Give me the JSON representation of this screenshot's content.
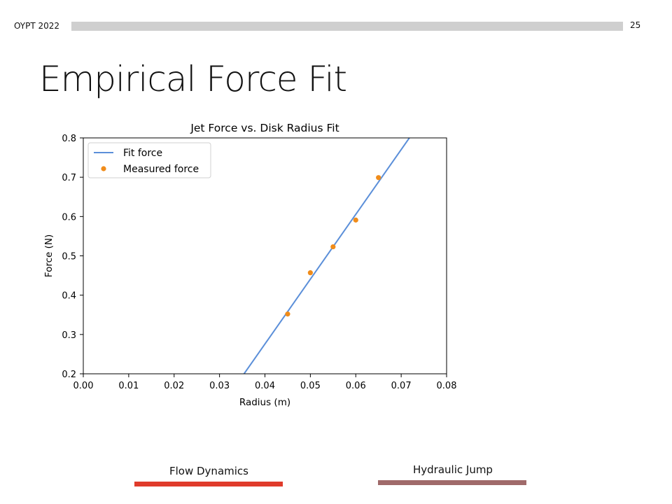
{
  "header": {
    "left_text": "OYPT 2022",
    "page_number": "25"
  },
  "slide": {
    "title": "Empirical Force Fit"
  },
  "chart_data": {
    "type": "line",
    "title": "Jet Force vs. Disk Radius Fit",
    "xlabel": "Radius (m)",
    "ylabel": "Force (N)",
    "xlim": [
      0.0,
      0.08
    ],
    "ylim": [
      0.2,
      0.8
    ],
    "xticks": [
      "0.00",
      "0.01",
      "0.02",
      "0.03",
      "0.04",
      "0.05",
      "0.06",
      "0.07",
      "0.08"
    ],
    "yticks": [
      "0.2",
      "0.3",
      "0.4",
      "0.5",
      "0.6",
      "0.7",
      "0.8"
    ],
    "grid": false,
    "legend_position": "top-left",
    "series": [
      {
        "name": "Fit force",
        "kind": "line",
        "color": "#5b8fd9",
        "x": [
          0.0354,
          0.0718
        ],
        "y": [
          0.2,
          0.8
        ]
      },
      {
        "name": "Measured force",
        "kind": "scatter",
        "color": "#f08c1a",
        "x": [
          0.045,
          0.05,
          0.055,
          0.06,
          0.065
        ],
        "y": [
          0.352,
          0.457,
          0.523,
          0.591,
          0.699
        ]
      }
    ]
  },
  "footer": {
    "tabs": [
      {
        "label": "Flow Dynamics",
        "color": "#e03b2b"
      },
      {
        "label": "Hydraulic Jump",
        "color": "#a06a6a"
      }
    ]
  }
}
